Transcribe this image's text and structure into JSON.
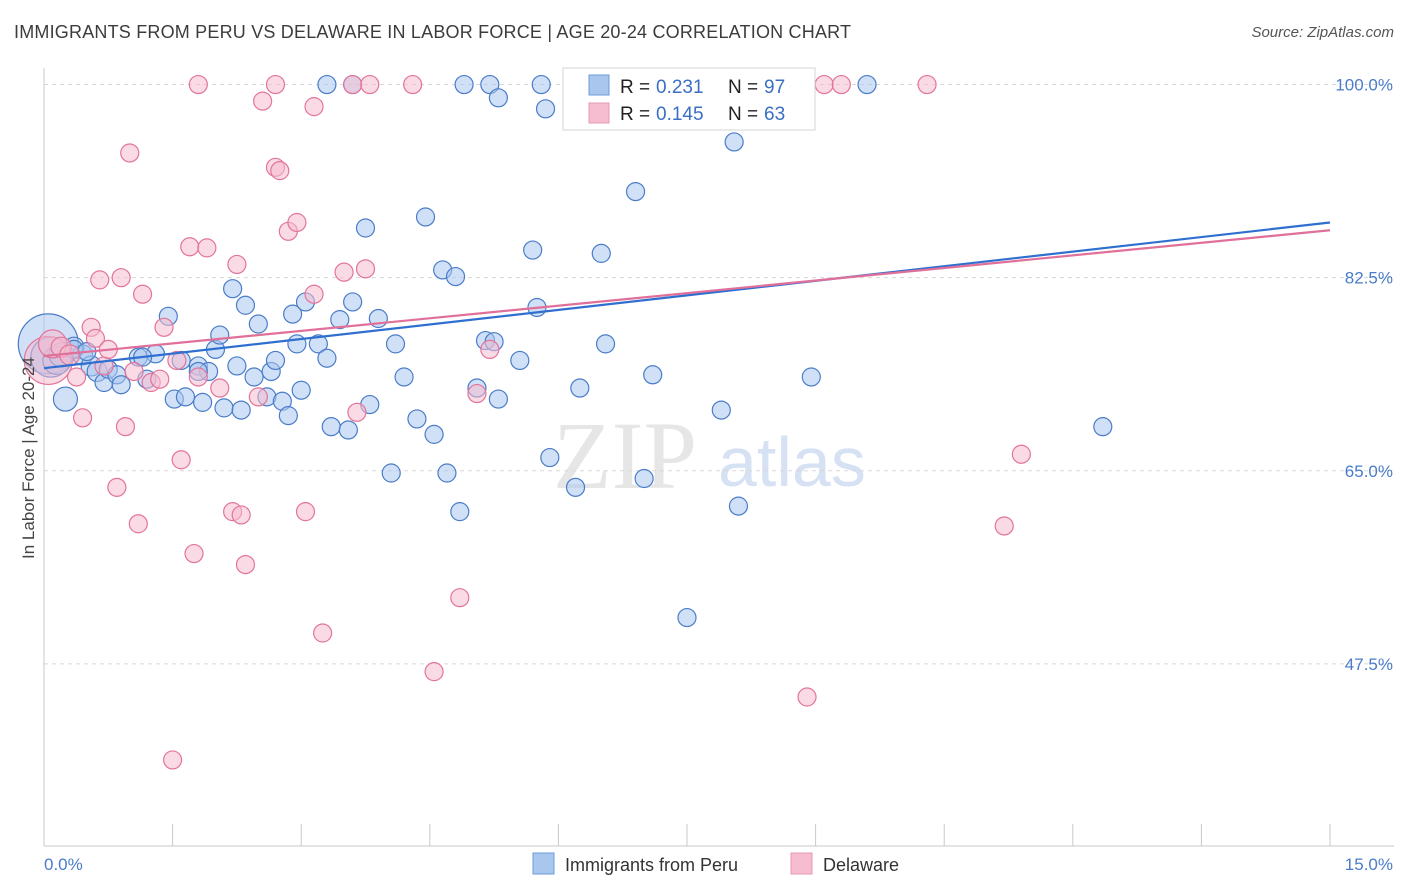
{
  "header": {
    "title": "IMMIGRANTS FROM PERU VS DELAWARE IN LABOR FORCE | AGE 20-24 CORRELATION CHART",
    "source": "Source: ZipAtlas.com"
  },
  "colors": {
    "blue": "#4a7cc9",
    "blue_fill": "#a9c6ee",
    "blue_line": "#2f6fd0",
    "pink": "#e3749a",
    "pink_fill": "#f6bccf",
    "pink_line": "#e0709a",
    "grid": "#d8d8d8"
  },
  "watermark": {
    "zip": "ZIP",
    "atlas": "atlas"
  },
  "legend": {
    "r_label": "R =",
    "n_label": "N =",
    "series": [
      {
        "r": "0.231",
        "n": "97"
      },
      {
        "r": "0.145",
        "n": "63"
      }
    ]
  },
  "bottom_legend": [
    "Immigrants from Peru",
    "Delaware"
  ],
  "chart_data": {
    "type": "scatter",
    "xlabel": "",
    "ylabel": "In Labor Force | Age 20-24",
    "xlim": [
      0,
      15
    ],
    "ylim": [
      31,
      101.5
    ],
    "x_tick_labels": [
      "0.0%",
      "15.0%"
    ],
    "y_ticks": [
      47.5,
      65.0,
      82.5,
      100.0
    ],
    "y_tick_labels": [
      "47.5%",
      "65.0%",
      "82.5%",
      "100.0%"
    ],
    "grid": "horizontal dashed",
    "legend_position": "top-center",
    "series": [
      {
        "name": "Immigrants from Peru",
        "color": "blue",
        "trend": [
          [
            0.0,
            74.3
          ],
          [
            15.0,
            87.5
          ]
        ],
        "points": [
          [
            0.05,
            76.5,
            30
          ],
          [
            0.08,
            75.3,
            20
          ],
          [
            0.15,
            75.0,
            14
          ],
          [
            0.2,
            75.5,
            12
          ],
          [
            0.25,
            71.5,
            12
          ],
          [
            0.35,
            76.2,
            10
          ],
          [
            0.45,
            75.5,
            10
          ],
          [
            0.55,
            74.5,
            10
          ],
          [
            0.62,
            74.0,
            10
          ],
          [
            0.7,
            73.0,
            9
          ],
          [
            0.75,
            74.2,
            9
          ],
          [
            0.85,
            73.7,
            9
          ],
          [
            0.9,
            72.8,
            9
          ],
          [
            1.1,
            75.3,
            9
          ],
          [
            1.2,
            73.3,
            9
          ],
          [
            1.3,
            75.6,
            9
          ],
          [
            1.45,
            79.0,
            9
          ],
          [
            1.52,
            71.5,
            9
          ],
          [
            1.6,
            75.0,
            9
          ],
          [
            1.65,
            71.7,
            9
          ],
          [
            1.8,
            74.5,
            9
          ],
          [
            1.85,
            71.2,
            9
          ],
          [
            1.92,
            74.0,
            9
          ],
          [
            2.0,
            76.0,
            9
          ],
          [
            2.05,
            77.3,
            9
          ],
          [
            2.1,
            70.7,
            9
          ],
          [
            2.2,
            81.5,
            9
          ],
          [
            2.25,
            74.5,
            9
          ],
          [
            2.3,
            70.5,
            9
          ],
          [
            2.35,
            80.0,
            9
          ],
          [
            2.45,
            73.5,
            9
          ],
          [
            2.5,
            78.3,
            9
          ],
          [
            2.6,
            71.7,
            9
          ],
          [
            2.65,
            74.0,
            9
          ],
          [
            2.7,
            75.0,
            9
          ],
          [
            2.78,
            71.3,
            9
          ],
          [
            2.85,
            70.0,
            9
          ],
          [
            2.9,
            79.2,
            9
          ],
          [
            2.95,
            76.5,
            9
          ],
          [
            3.0,
            72.3,
            9
          ],
          [
            3.05,
            80.3,
            9
          ],
          [
            3.2,
            76.5,
            9
          ],
          [
            3.3,
            75.2,
            9
          ],
          [
            3.35,
            69.0,
            9
          ],
          [
            3.45,
            78.7,
            9
          ],
          [
            3.55,
            68.7,
            9
          ],
          [
            3.6,
            80.3,
            9
          ],
          [
            3.75,
            87.0,
            9
          ],
          [
            3.8,
            71.0,
            9
          ],
          [
            3.9,
            78.8,
            9
          ],
          [
            4.05,
            64.8,
            9
          ],
          [
            4.1,
            76.5,
            9
          ],
          [
            4.2,
            73.5,
            9
          ],
          [
            4.35,
            69.7,
            9
          ],
          [
            4.45,
            88.0,
            9
          ],
          [
            4.55,
            68.3,
            9
          ],
          [
            4.65,
            83.2,
            9
          ],
          [
            4.7,
            64.8,
            9
          ],
          [
            4.8,
            82.6,
            9
          ],
          [
            4.85,
            61.3,
            9
          ],
          [
            5.05,
            72.5,
            9
          ],
          [
            5.15,
            76.8,
            9
          ],
          [
            5.25,
            76.7,
            9
          ],
          [
            5.3,
            71.5,
            9
          ],
          [
            5.55,
            75.0,
            9
          ],
          [
            5.7,
            85.0,
            9
          ],
          [
            5.75,
            79.8,
            9
          ],
          [
            5.9,
            66.2,
            9
          ],
          [
            6.2,
            63.5,
            9
          ],
          [
            6.25,
            72.5,
            9
          ],
          [
            6.5,
            84.7,
            9
          ],
          [
            6.55,
            76.5,
            9
          ],
          [
            6.9,
            90.3,
            9
          ],
          [
            7.0,
            64.3,
            9
          ],
          [
            7.1,
            73.7,
            9
          ],
          [
            7.5,
            51.7,
            9
          ],
          [
            7.9,
            70.5,
            9
          ],
          [
            8.1,
            61.8,
            9
          ],
          [
            8.95,
            73.5,
            9
          ],
          [
            12.35,
            69.0,
            9
          ],
          [
            3.3,
            100.0,
            9
          ],
          [
            3.6,
            100.0,
            9
          ],
          [
            4.9,
            100.0,
            9
          ],
          [
            5.2,
            100.0,
            9
          ],
          [
            5.3,
            98.8,
            9
          ],
          [
            5.8,
            100.0,
            9
          ],
          [
            5.85,
            97.8,
            9
          ],
          [
            6.3,
            100.0,
            9
          ],
          [
            6.8,
            100.0,
            9
          ],
          [
            7.5,
            100.0,
            9
          ],
          [
            8.05,
            94.8,
            9
          ],
          [
            8.85,
            100.0,
            9
          ],
          [
            9.6,
            100.0,
            9
          ],
          [
            0.35,
            76.0,
            9
          ],
          [
            0.5,
            75.8,
            9
          ],
          [
            1.8,
            74.0,
            9
          ],
          [
            1.15,
            75.3,
            9
          ]
        ]
      },
      {
        "name": "Delaware",
        "color": "pink",
        "trend": [
          [
            0.0,
            75.4
          ],
          [
            15.0,
            86.8
          ]
        ],
        "points": [
          [
            0.05,
            75.0,
            24
          ],
          [
            0.1,
            76.5,
            14
          ],
          [
            0.2,
            76.2,
            10
          ],
          [
            0.3,
            75.5,
            10
          ],
          [
            0.38,
            73.5,
            9
          ],
          [
            0.45,
            69.8,
            9
          ],
          [
            0.55,
            78.0,
            9
          ],
          [
            0.6,
            77.0,
            9
          ],
          [
            0.65,
            82.3,
            9
          ],
          [
            0.7,
            74.5,
            9
          ],
          [
            0.85,
            63.5,
            9
          ],
          [
            0.9,
            82.5,
            9
          ],
          [
            0.95,
            69.0,
            9
          ],
          [
            1.0,
            93.8,
            9
          ],
          [
            1.1,
            60.2,
            9
          ],
          [
            1.15,
            81.0,
            9
          ],
          [
            1.25,
            73.0,
            9
          ],
          [
            1.35,
            73.3,
            9
          ],
          [
            1.4,
            78.0,
            9
          ],
          [
            1.6,
            66.0,
            9
          ],
          [
            1.7,
            85.3,
            9
          ],
          [
            1.75,
            57.5,
            9
          ],
          [
            1.8,
            73.5,
            9
          ],
          [
            1.8,
            100.0,
            9
          ],
          [
            1.9,
            85.2,
            9
          ],
          [
            1.5,
            38.8,
            9
          ],
          [
            2.05,
            72.5,
            9
          ],
          [
            2.2,
            61.3,
            9
          ],
          [
            2.25,
            83.7,
            9
          ],
          [
            2.3,
            61.0,
            9
          ],
          [
            2.35,
            56.5,
            9
          ],
          [
            2.5,
            71.7,
            9
          ],
          [
            2.55,
            98.5,
            9
          ],
          [
            2.7,
            92.5,
            9
          ],
          [
            2.75,
            92.2,
            9
          ],
          [
            2.7,
            100.0,
            9
          ],
          [
            2.85,
            86.7,
            9
          ],
          [
            2.95,
            87.5,
            9
          ],
          [
            3.05,
            61.3,
            9
          ],
          [
            3.15,
            81.0,
            9
          ],
          [
            3.15,
            98.0,
            9
          ],
          [
            3.25,
            50.3,
            9
          ],
          [
            3.5,
            83.0,
            9
          ],
          [
            3.6,
            100.0,
            9
          ],
          [
            3.65,
            70.3,
            9
          ],
          [
            3.75,
            83.3,
            9
          ],
          [
            3.8,
            100.0,
            9
          ],
          [
            4.3,
            100.0,
            9
          ],
          [
            4.55,
            46.8,
            9
          ],
          [
            4.85,
            53.5,
            9
          ],
          [
            5.05,
            72.0,
            9
          ],
          [
            5.2,
            76.0,
            9
          ],
          [
            7.0,
            100.0,
            9
          ],
          [
            8.3,
            100.0,
            9
          ],
          [
            8.9,
            44.5,
            9
          ],
          [
            9.1,
            100.0,
            9
          ],
          [
            9.3,
            100.0,
            9
          ],
          [
            10.3,
            100.0,
            9
          ],
          [
            11.4,
            66.5,
            9
          ],
          [
            11.2,
            60.0,
            9
          ],
          [
            0.75,
            76.0,
            9
          ],
          [
            1.05,
            74.0,
            9
          ],
          [
            1.55,
            75.0,
            9
          ]
        ]
      }
    ]
  }
}
